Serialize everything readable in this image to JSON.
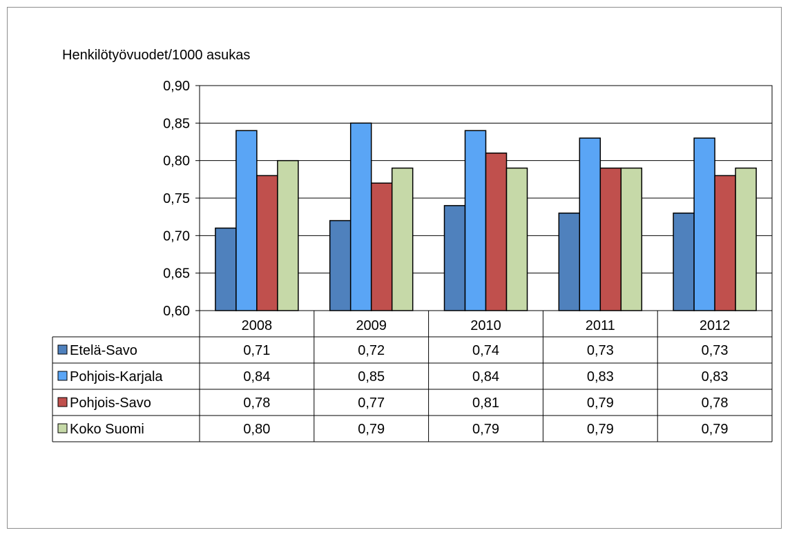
{
  "chart_data": {
    "type": "bar",
    "title": "",
    "ylabel": "Henkilötyövuodet/1000 asukas",
    "xlabel": "",
    "categories": [
      "2008",
      "2009",
      "2010",
      "2011",
      "2012"
    ],
    "ylim": [
      0.6,
      0.9
    ],
    "yticks": [
      0.6,
      0.65,
      0.7,
      0.75,
      0.8,
      0.85,
      0.9
    ],
    "ytick_labels": [
      "0,60",
      "0,65",
      "0,70",
      "0,75",
      "0,80",
      "0,85",
      "0,90"
    ],
    "grid": true,
    "legend": "data-table",
    "series": [
      {
        "name": "Etelä-Savo",
        "color": "#4f81bd",
        "values": [
          0.71,
          0.72,
          0.74,
          0.73,
          0.73
        ],
        "labels": [
          "0,71",
          "0,72",
          "0,74",
          "0,73",
          "0,73"
        ]
      },
      {
        "name": "Pohjois-Karjala",
        "color": "#5aa5f5",
        "values": [
          0.84,
          0.85,
          0.84,
          0.83,
          0.83
        ],
        "labels": [
          "0,84",
          "0,85",
          "0,84",
          "0,83",
          "0,83"
        ]
      },
      {
        "name": "Pohjois-Savo",
        "color": "#c0504d",
        "values": [
          0.78,
          0.77,
          0.81,
          0.79,
          0.78
        ],
        "labels": [
          "0,78",
          "0,77",
          "0,81",
          "0,79",
          "0,78"
        ]
      },
      {
        "name": "Koko Suomi",
        "color": "#c6d9a8",
        "values": [
          0.8,
          0.79,
          0.79,
          0.79,
          0.79
        ],
        "labels": [
          "0,80",
          "0,79",
          "0,79",
          "0,79",
          "0,79"
        ]
      }
    ]
  }
}
